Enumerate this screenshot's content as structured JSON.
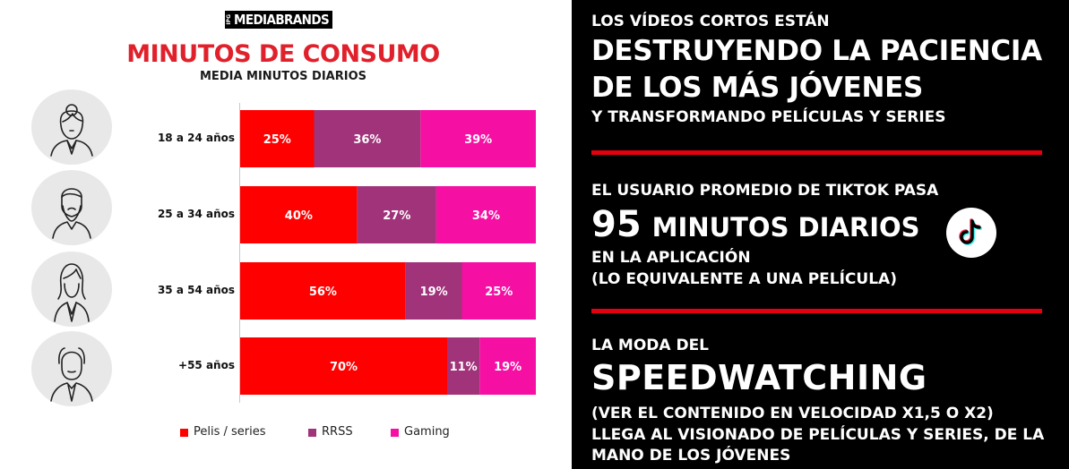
{
  "logo": {
    "prefix": "IPG",
    "name": "MEDIABRANDS"
  },
  "chart_data": {
    "type": "bar",
    "orientation": "horizontal",
    "stacked": true,
    "title": "MINUTOS DE CONSUMO",
    "subtitle": "MEDIA MINUTOS DIARIOS",
    "categories": [
      "18 a 24 años",
      "25 a 34 años",
      "35 a 54 años",
      "+55 años"
    ],
    "series": [
      {
        "name": "Pelis / series",
        "color": "#ff0000",
        "values": [
          25,
          40,
          56,
          70
        ]
      },
      {
        "name": "RRSS",
        "color": "#a0337a",
        "values": [
          36,
          27,
          19,
          11
        ]
      },
      {
        "name": "Gaming",
        "color": "#f50fa3",
        "values": [
          39,
          34,
          25,
          19
        ]
      }
    ],
    "data_labels": [
      [
        "25%",
        "36%",
        "39%"
      ],
      [
        "40%",
        "27%",
        "34%"
      ],
      [
        "56%",
        "19%",
        "25%"
      ],
      [
        "70%",
        "11%",
        "19%"
      ]
    ],
    "xlim": [
      0,
      100
    ],
    "grid": false,
    "legend_position": "bottom",
    "avatar_icons": [
      "young-woman-icon",
      "bearded-man-icon",
      "woman-icon",
      "elderly-man-icon"
    ]
  },
  "panel": {
    "block1": {
      "line1": "LOS VÍDEOS CORTOS ESTÁN",
      "line2": "DESTRUYENDO LA PACIENCIA",
      "line3": "DE LOS MÁS JÓVENES",
      "line4": "Y TRANSFORMANDO PELÍCULAS Y SERIES"
    },
    "block2": {
      "line1": "EL USUARIO PROMEDIO DE TIKTOK PASA",
      "big_number": "95",
      "big_text": "MINUTOS DIARIOS",
      "line3": "EN LA APLICACIÓN",
      "line4": "(LO EQUIVALENTE A UNA PELÍCULA)",
      "icon": "tiktok-icon"
    },
    "block3": {
      "line1": "LA MODA DEL",
      "line2": "SPEEDWATCHING",
      "line3": "(VER EL CONTENIDO EN VELOCIDAD X1,5 O X2)",
      "line4": "LLEGA AL VISIONADO DE PELÍCULAS Y SERIES, DE LA",
      "line5": "MANO DE LOS JÓVENES"
    },
    "divider_color": "#e3000f"
  }
}
